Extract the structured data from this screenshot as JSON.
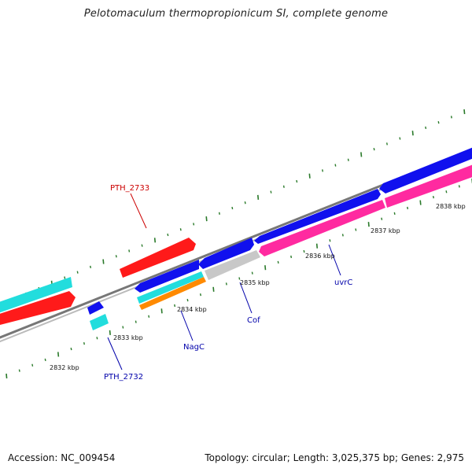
{
  "title": "Pelotomaculum thermopropionicum SI, complete genome",
  "footer": {
    "accession": "Accession: NC_009454",
    "summary": "Topology: circular; Length: 3,025,375 bp; Genes: 2,975"
  },
  "colors": {
    "backbone": "#888888",
    "tick": "#2a7a2a",
    "red": "#ff1a1a",
    "cyan": "#22dddd",
    "blue": "#1010ee",
    "pink": "#ff2aa0",
    "gray": "#c8c8c8",
    "orange": "#ff8a00",
    "label_red": "#cc0000",
    "label_blue": "#0000aa"
  },
  "kbp_labels": [
    "2832 kbp",
    "2833 kbp",
    "2834 kbp",
    "2835 kbp",
    "2836 kbp",
    "2837 kbp",
    "2838 kbp"
  ],
  "gene_labels": {
    "pth2733": "PTH_2733",
    "pth2732": "PTH_2732",
    "nagc": "NagC",
    "cof": "Cof",
    "uvrc": "uvrC"
  }
}
